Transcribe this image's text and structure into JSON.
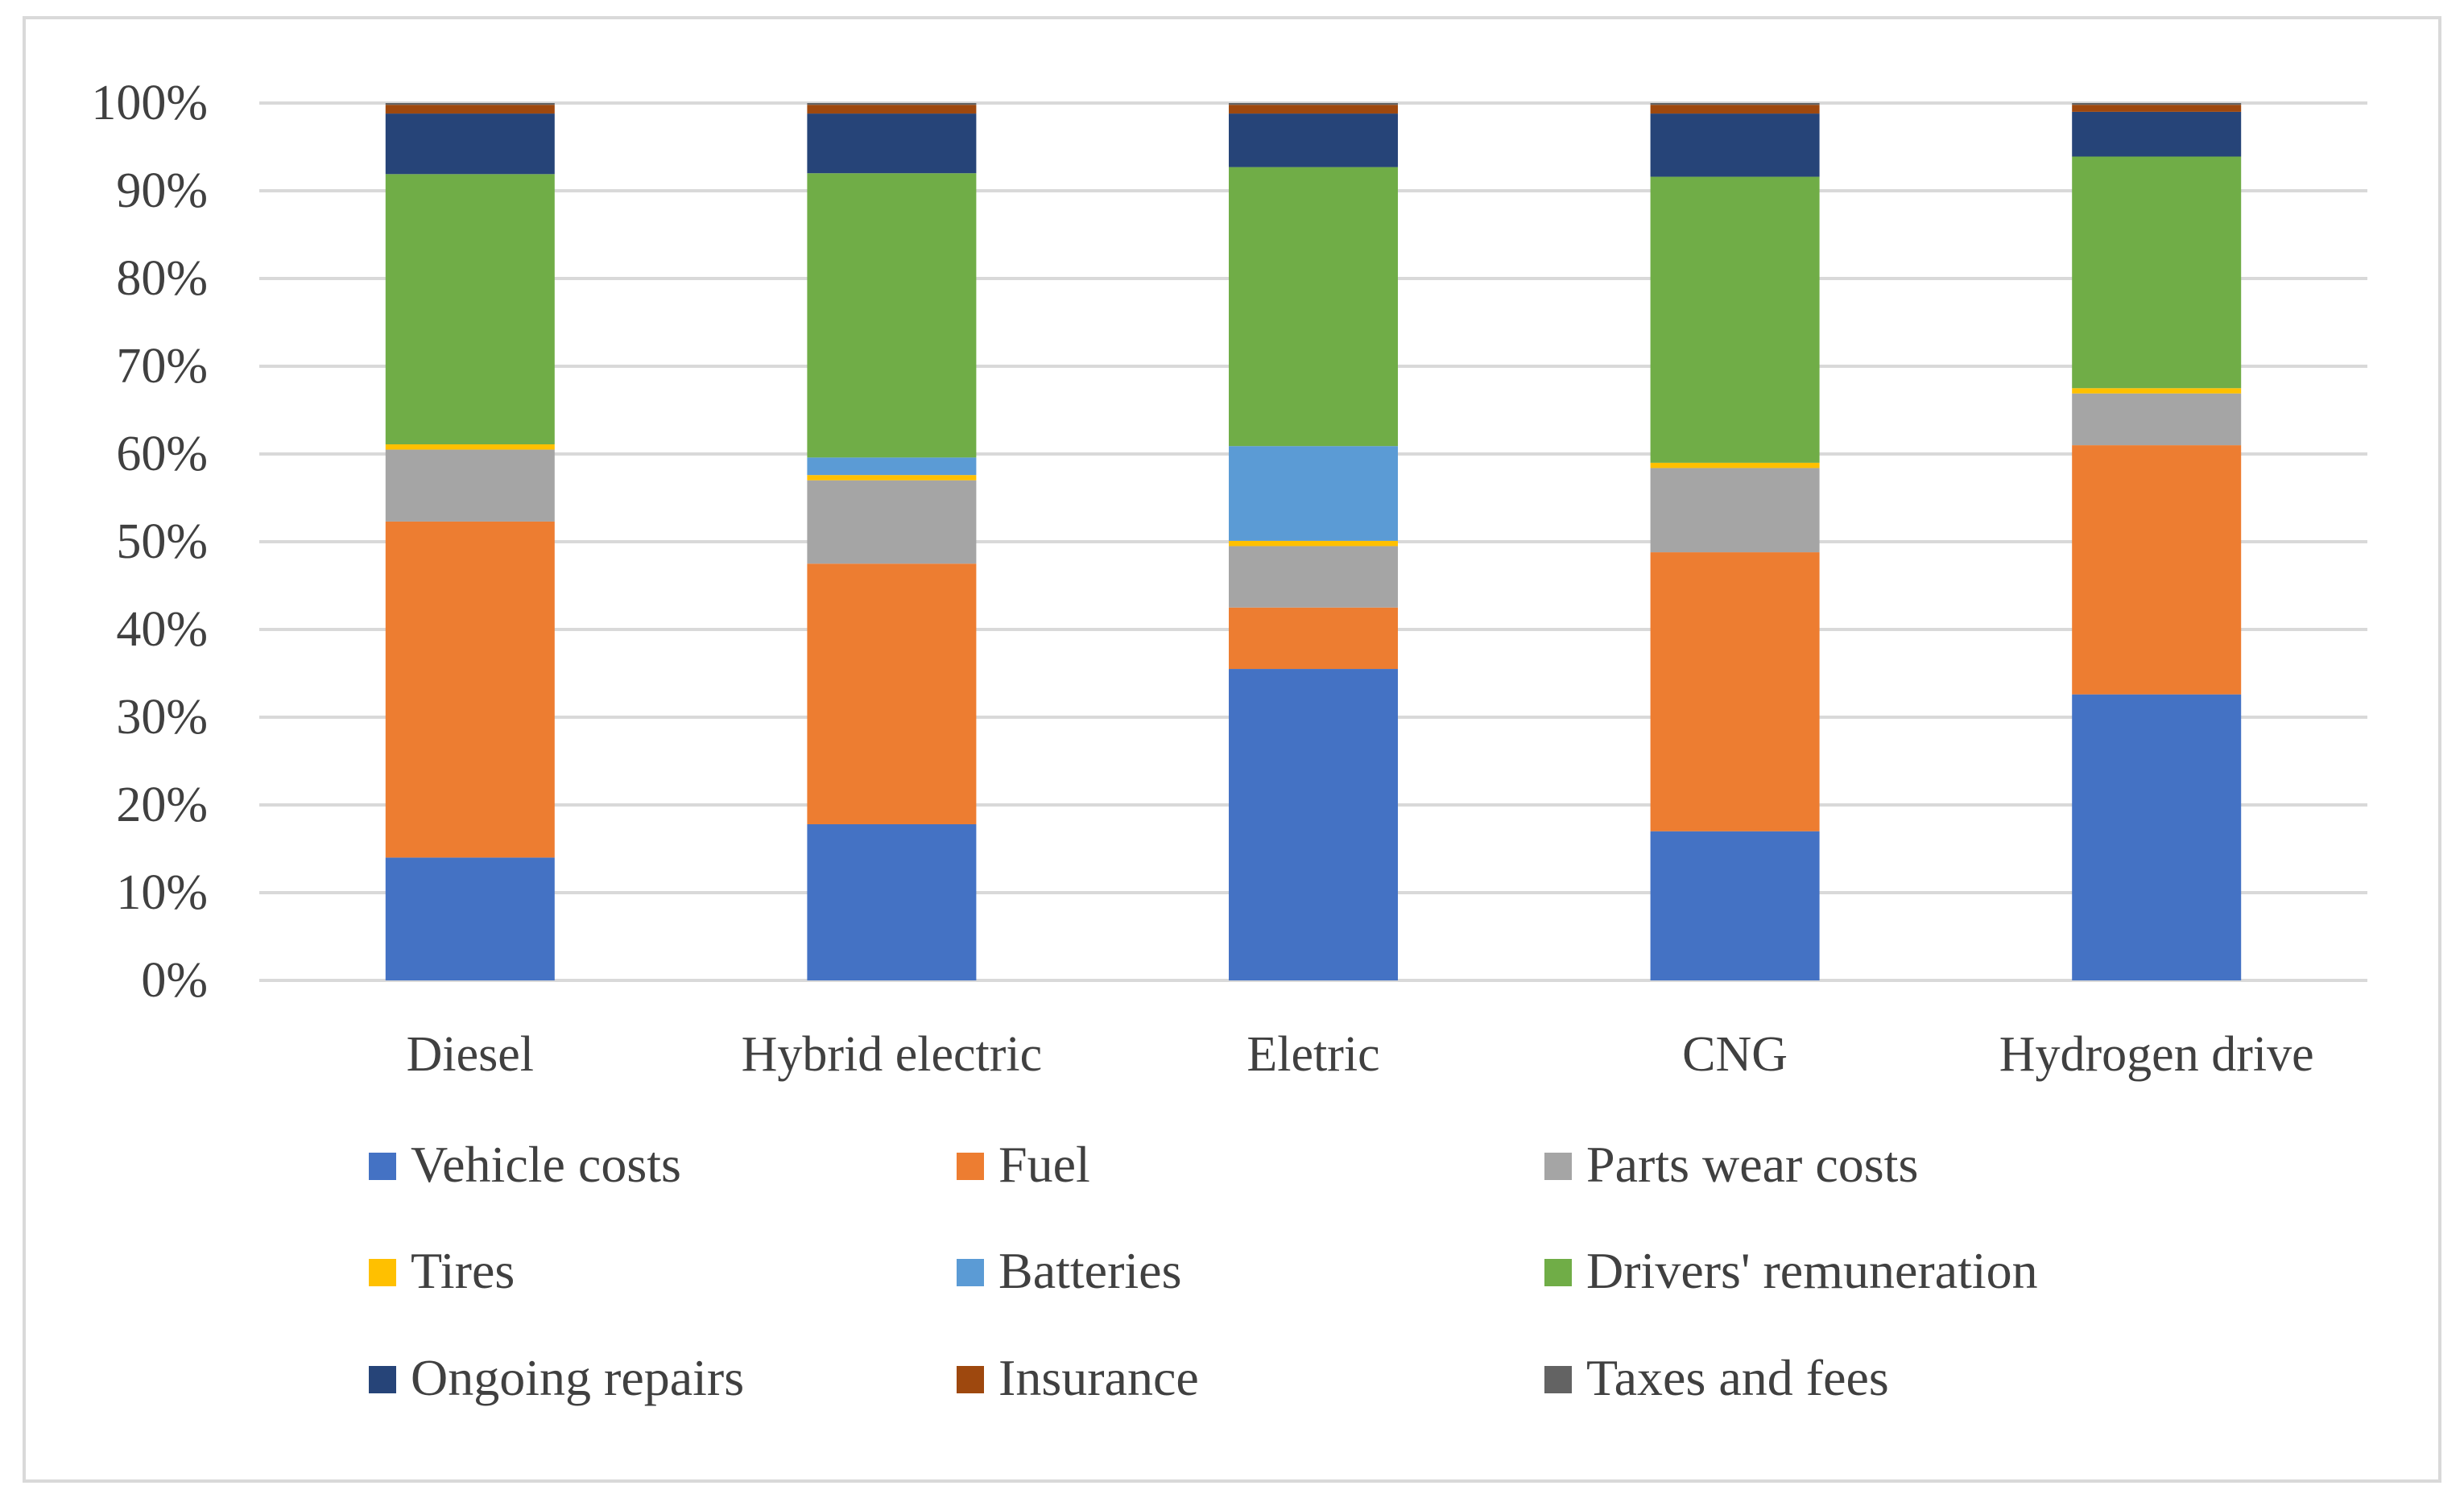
{
  "chart_data": {
    "type": "bar",
    "stacked": true,
    "percent": true,
    "title": "",
    "xlabel": "",
    "ylabel": "",
    "ylim": [
      0,
      100
    ],
    "y_ticks": [
      "0%",
      "10%",
      "20%",
      "30%",
      "40%",
      "50%",
      "60%",
      "70%",
      "80%",
      "90%",
      "100%"
    ],
    "grid": true,
    "legend_position": "bottom",
    "categories": [
      "Diesel",
      "Hybrid electric",
      "Eletric",
      "CNG",
      "Hydrogen drive"
    ],
    "series": [
      {
        "name": "Vehicle costs",
        "color": "#4472c4",
        "values": [
          14.0,
          17.8,
          35.5,
          17.0,
          32.6
        ]
      },
      {
        "name": "Fuel",
        "color": "#ed7d31",
        "values": [
          38.3,
          29.7,
          7.0,
          31.8,
          28.4
        ]
      },
      {
        "name": "Parts wear costs",
        "color": "#a5a5a5",
        "values": [
          8.2,
          9.5,
          7.0,
          9.6,
          5.9
        ]
      },
      {
        "name": "Tires",
        "color": "#ffc000",
        "values": [
          0.6,
          0.6,
          0.6,
          0.6,
          0.6
        ]
      },
      {
        "name": "Batteries",
        "color": "#5b9bd5",
        "values": [
          0.0,
          2.0,
          10.8,
          0.0,
          0.0
        ]
      },
      {
        "name": "Drivers' remuneration",
        "color": "#70ad47",
        "values": [
          30.8,
          32.4,
          31.8,
          32.6,
          26.4
        ]
      },
      {
        "name": "Ongoing repairs",
        "color": "#264478",
        "values": [
          6.9,
          6.8,
          6.1,
          7.2,
          5.1
        ]
      },
      {
        "name": "Insurance",
        "color": "#9e480e",
        "values": [
          1.0,
          1.0,
          1.0,
          1.0,
          0.8
        ]
      },
      {
        "name": "Taxes and fees",
        "color": "#636363",
        "values": [
          0.2,
          0.2,
          0.2,
          0.2,
          0.2
        ]
      }
    ]
  }
}
